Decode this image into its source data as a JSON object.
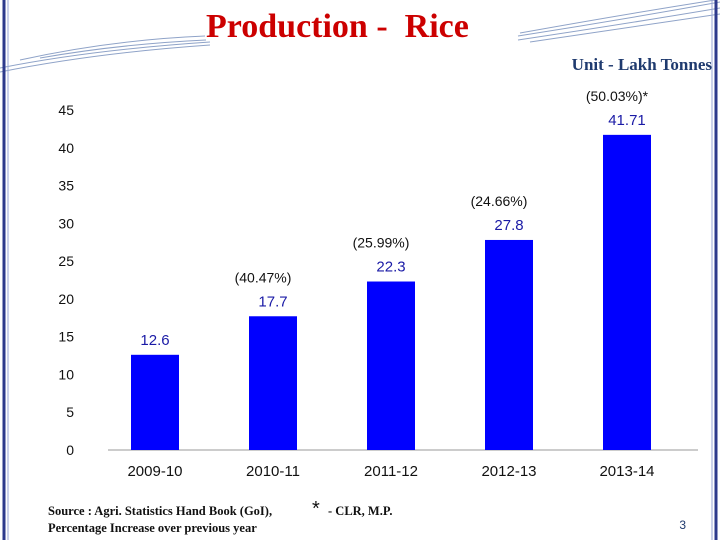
{
  "slide": {
    "title": "Production -  Rice",
    "unit": "Unit - Lakh Tonnes",
    "source_line1": "Source : Agri. Statistics Hand Book (GoI),",
    "asterisk": "*",
    "source_line1b": "- CLR, M.P.",
    "source_line2": "Percentage Increase over previous year",
    "page_number": "3",
    "colors": {
      "title": "#cc0000",
      "bar": "#0000ff",
      "value_label": "#1a1aa6",
      "pct_label": "#111111",
      "frame": "#2e3a8c"
    }
  },
  "chart_data": {
    "type": "bar",
    "title": "Production - Rice",
    "xlabel": "",
    "ylabel": "",
    "ylim": [
      0,
      45
    ],
    "yticks": [
      0,
      5,
      10,
      15,
      20,
      25,
      30,
      35,
      40,
      45
    ],
    "grid": false,
    "categories": [
      "2009-10",
      "2010-11",
      "2011-12",
      "2012-13",
      "2013-14"
    ],
    "values": [
      12.6,
      17.7,
      22.3,
      27.8,
      41.71
    ],
    "value_labels": [
      "12.6",
      "17.7",
      "22.3",
      "27.8",
      "41.71"
    ],
    "pct_labels": [
      "",
      "(40.47%)",
      "(25.99%)",
      "(24.66%)",
      "(50.03%)*"
    ]
  }
}
